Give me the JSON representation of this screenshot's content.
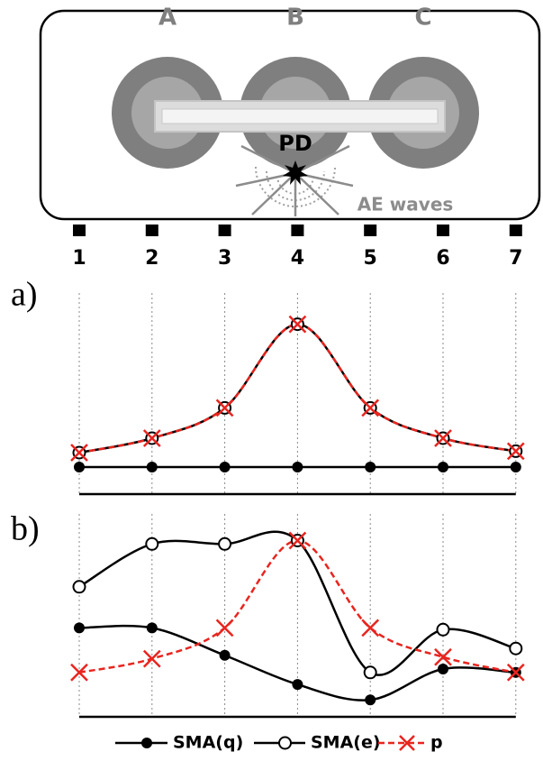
{
  "diagram": {
    "electrodes": [
      "A",
      "B",
      "C"
    ],
    "source": "PD",
    "waves": "AE waves",
    "sensors": [
      "1",
      "2",
      "3",
      "4",
      "5",
      "6",
      "7"
    ]
  },
  "chart_data": [
    {
      "type": "line",
      "label": "a)",
      "ylim": [
        0,
        1
      ],
      "series": [
        {
          "name": "SMA(q)",
          "color": "#000000",
          "marker": "filled-circle",
          "dash": false,
          "values": [
            0,
            0,
            0,
            0,
            0,
            0,
            0
          ]
        },
        {
          "name": "SMA(e)",
          "color": "#000000",
          "marker": "open-circle",
          "dash": false,
          "values": [
            0.1,
            0.2,
            0.41,
            0.99,
            0.41,
            0.2,
            0.11
          ]
        },
        {
          "name": "p",
          "color": "#e8251f",
          "marker": "cross",
          "dash": true,
          "values": [
            0.1,
            0.2,
            0.41,
            0.99,
            0.41,
            0.2,
            0.11
          ]
        }
      ]
    },
    {
      "type": "line",
      "label": "b)",
      "ylim": [
        0,
        1
      ],
      "series": [
        {
          "name": "SMA(q)",
          "color": "#000000",
          "marker": "filled-circle",
          "dash": false,
          "values": [
            0.44,
            0.44,
            0.28,
            0.11,
            0.02,
            0.2,
            0.18
          ]
        },
        {
          "name": "SMA(e)",
          "color": "#000000",
          "marker": "open-circle",
          "dash": false,
          "values": [
            0.68,
            0.93,
            0.93,
            0.95,
            0.18,
            0.43,
            0.32
          ]
        },
        {
          "name": "p",
          "color": "#e8251f",
          "marker": "cross",
          "dash": true,
          "values": [
            0.18,
            0.26,
            0.44,
            0.95,
            0.44,
            0.27,
            0.18
          ]
        }
      ]
    }
  ]
}
